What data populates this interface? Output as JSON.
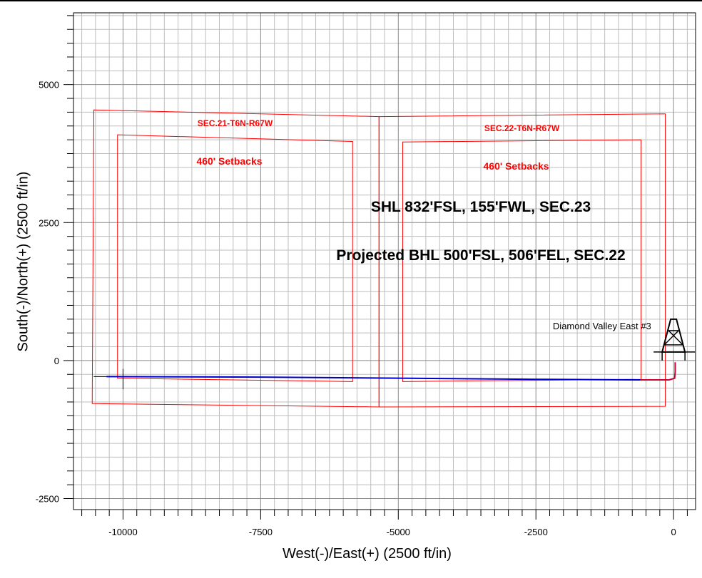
{
  "chart_data": {
    "type": "plan-view",
    "xlabel": "West(-)/East(+) (2500 ft/in)",
    "ylabel": "South(-)/North(+) (2500 ft/in)",
    "xlim": [
      -10900,
      400
    ],
    "ylim": [
      -2700,
      6300
    ],
    "x_ticks": [
      -10000,
      -7500,
      -5000,
      -2500,
      0
    ],
    "y_ticks": [
      5000,
      2500,
      0,
      -2500
    ],
    "minor_step": 250,
    "grid": true,
    "colors": {
      "boundary": "#ff0000",
      "wellpath": "#0000cc",
      "curve": "#cc0033",
      "grid": "#bdbdbd",
      "major_grid": "#8a8a8a"
    },
    "sections": [
      {
        "label": "SEC.21-T6N-R67W",
        "setback_label": "460' Setbacks",
        "boundary": [
          [
            -10530,
            4540
          ],
          [
            -5350,
            4420
          ],
          [
            -5350,
            -840
          ],
          [
            -10560,
            -780
          ]
        ],
        "setback": [
          [
            -10100,
            4090
          ],
          [
            -5830,
            3970
          ],
          [
            -5830,
            -380
          ],
          [
            -10100,
            -320
          ]
        ]
      },
      {
        "label": "SEC.22-T6N-R67W",
        "setback_label": "460' Setbacks",
        "boundary": [
          [
            -5350,
            4420
          ],
          [
            -150,
            4470
          ],
          [
            -150,
            -830
          ],
          [
            -5350,
            -840
          ]
        ],
        "setback": [
          [
            -4920,
            3960
          ],
          [
            -590,
            4000
          ],
          [
            -590,
            -340
          ],
          [
            -4920,
            -380
          ]
        ]
      }
    ],
    "annotations": [
      {
        "text": "SHL 832'FSL, 155'FWL, SEC.23",
        "x": -3500,
        "y": 2700,
        "style": "large"
      },
      {
        "text": "Projected BHL 500'FSL, 506'FEL, SEC.22",
        "x": -3500,
        "y": 1820,
        "style": "large"
      },
      {
        "text": "Diamond Valley East #3",
        "x": -1300,
        "y": 570,
        "style": "small"
      }
    ],
    "wellpath": {
      "name": "Diamond Valley East #3",
      "points": [
        [
          -10300,
          -290
        ],
        [
          -7500,
          -300
        ],
        [
          -5000,
          -320
        ],
        [
          -2500,
          -340
        ],
        [
          -600,
          -350
        ],
        [
          -80,
          -350
        ],
        [
          20,
          -320
        ],
        [
          30,
          -200
        ],
        [
          30,
          -30
        ]
      ]
    },
    "surface_location": [
      0,
      0
    ]
  }
}
